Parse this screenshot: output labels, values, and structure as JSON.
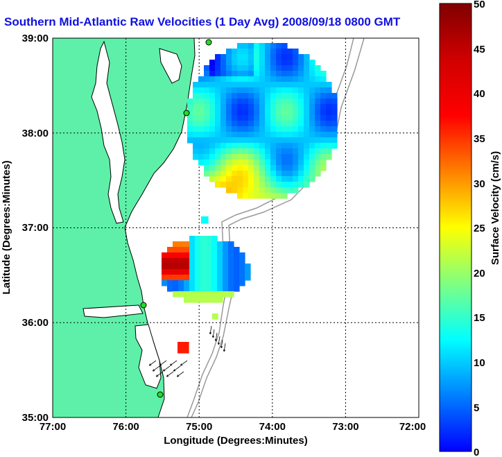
{
  "title": "Southern Mid-Atlantic Raw Velocities (1 Day Avg) 2008/09/18 0800 GMT",
  "map": {
    "xlabel": "Longitude (Degrees:Minutes)",
    "ylabel": "Latitude (Degrees:Minutes)",
    "lon_range": [
      -77,
      -72
    ],
    "lat_range": [
      35,
      39
    ],
    "x_ticks": [
      "77:00",
      "76:00",
      "75:00",
      "74:00",
      "73:00",
      "72:00"
    ],
    "y_ticks": [
      "35:00",
      "36:00",
      "37:00",
      "38:00",
      "39:00"
    ],
    "grid": "dotted",
    "land_color": "#5ef0a8"
  },
  "colorbar": {
    "label": "Surface Velocity (cm/s)",
    "range": [
      0,
      50
    ],
    "ticks": [
      "0",
      "5",
      "10",
      "15",
      "20",
      "25",
      "30",
      "35",
      "40",
      "45",
      "50"
    ],
    "colormap": "jet"
  }
}
